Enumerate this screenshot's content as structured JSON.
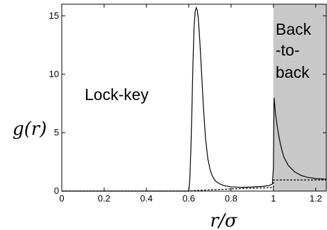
{
  "chart_data": {
    "type": "line",
    "title": "",
    "xlabel": "r/σ",
    "ylabel": "g(r)",
    "xlim": [
      0,
      1.25
    ],
    "ylim": [
      0,
      16
    ],
    "x_ticks": [
      0,
      0.2,
      0.4,
      0.6,
      0.8,
      1,
      1.2
    ],
    "x_tick_labels": [
      "0",
      "0.2",
      "0.4",
      "0.6",
      "0.8",
      "1",
      "1.2"
    ],
    "y_ticks": [
      0,
      5,
      10,
      15
    ],
    "y_tick_labels": [
      "0",
      "5",
      "10",
      "15"
    ],
    "shaded_region": {
      "x": [
        1.0,
        1.25
      ],
      "color": "#c8c8c8"
    },
    "annotations": [
      {
        "text": "Lock-key"
      },
      {
        "text": "Back"
      },
      {
        "text": "-to-"
      },
      {
        "text": "back"
      }
    ],
    "series": [
      {
        "style": "solid",
        "color": "#000000",
        "points": [
          [
            0.0,
            0.0
          ],
          [
            0.6,
            0.0
          ],
          [
            0.605,
            1.0
          ],
          [
            0.61,
            3.5
          ],
          [
            0.615,
            7.0
          ],
          [
            0.62,
            11.0
          ],
          [
            0.625,
            14.0
          ],
          [
            0.63,
            15.3
          ],
          [
            0.635,
            15.7
          ],
          [
            0.64,
            15.5
          ],
          [
            0.645,
            14.8
          ],
          [
            0.65,
            13.5
          ],
          [
            0.655,
            12.0
          ],
          [
            0.66,
            10.3
          ],
          [
            0.665,
            8.6
          ],
          [
            0.67,
            7.0
          ],
          [
            0.675,
            5.6
          ],
          [
            0.68,
            4.4
          ],
          [
            0.69,
            2.8
          ],
          [
            0.7,
            1.9
          ],
          [
            0.71,
            1.35
          ],
          [
            0.72,
            1.0
          ],
          [
            0.73,
            0.8
          ],
          [
            0.75,
            0.58
          ],
          [
            0.77,
            0.45
          ],
          [
            0.8,
            0.36
          ],
          [
            0.85,
            0.32
          ],
          [
            0.9,
            0.35
          ],
          [
            0.95,
            0.4
          ],
          [
            0.98,
            0.48
          ],
          [
            0.995,
            0.6
          ],
          [
            1.0,
            2.0
          ],
          [
            1.003,
            8.0
          ],
          [
            1.01,
            6.6
          ],
          [
            1.02,
            5.3
          ],
          [
            1.03,
            4.3
          ],
          [
            1.04,
            3.5
          ],
          [
            1.05,
            2.9
          ],
          [
            1.07,
            2.2
          ],
          [
            1.1,
            1.65
          ],
          [
            1.13,
            1.35
          ],
          [
            1.16,
            1.18
          ],
          [
            1.2,
            1.07
          ],
          [
            1.25,
            1.02
          ]
        ]
      },
      {
        "style": "dashed",
        "color": "#000000",
        "points": [
          [
            0.0,
            0.0
          ],
          [
            0.6,
            0.0
          ],
          [
            0.63,
            0.05
          ],
          [
            0.7,
            0.1
          ],
          [
            0.8,
            0.18
          ],
          [
            0.9,
            0.25
          ],
          [
            0.99,
            0.3
          ],
          [
            1.0,
            0.3
          ],
          [
            1.0,
            0.95
          ],
          [
            1.25,
            0.95
          ]
        ]
      }
    ]
  }
}
